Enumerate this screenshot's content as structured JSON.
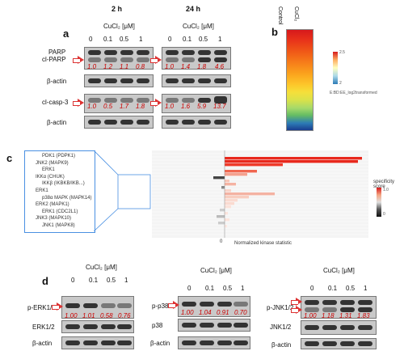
{
  "panel_a": {
    "letter": "a",
    "time_2h": "2 h",
    "time_24h": "24 h",
    "conc_header": "CuCl₂ [μM]",
    "concentrations": [
      "0",
      "0.1",
      "0.5",
      "1"
    ],
    "rows": [
      "PARP",
      "cl-PARP",
      "β-actin",
      "cl-casp-3",
      "β-actin"
    ],
    "parp_2h": [
      "1.0",
      "1.2",
      "1.1",
      "0.8"
    ],
    "parp_24h": [
      "1.0",
      "1.4",
      "1.8",
      "4.6"
    ],
    "casp_2h": [
      "1.0",
      "0.5",
      "1.7",
      "1.8"
    ],
    "casp_24h": [
      "1.0",
      "1.6",
      "5.9",
      "13.7"
    ]
  },
  "panel_b": {
    "letter": "b",
    "col_labels": [
      "Control",
      "CuCl₂"
    ],
    "legend_max": "2.5",
    "legend_min": "2",
    "legend_title": "E:BD:EE_log2transformed"
  },
  "panel_c": {
    "letter": "c",
    "kinases": [
      "PDK1 (PDPK1)",
      "JNK2 (MAPK9)",
      "ERK1",
      "IKKα (CHUK)",
      "IKKβ (IKBKB/IKB...)",
      "ERK1",
      "p38α MAPK (MAPK14)",
      "ERK2 (MAPK1)",
      "ERK1 (CDC2L1)",
      "JNK3 (MAPK10)",
      "JNK1 (MAPK8)"
    ],
    "xlabel": "Normalized kinase statistic",
    "zero_tick": "0",
    "legend_title": "specificity score",
    "legend_high": "1.0",
    "legend_low": "0"
  },
  "panel_d": {
    "letter": "d",
    "conc_header": "CuCl₂ [μM]",
    "concentrations": [
      "0",
      "0.1",
      "0.5",
      "1"
    ],
    "erk": {
      "phospho": "p-ERK1/2",
      "total": "ERK1/2",
      "actin": "β-actin",
      "values": [
        "1.00",
        "1.01",
        "0.58",
        "0.76"
      ]
    },
    "p38": {
      "phospho": "p-p38",
      "total": "p38",
      "actin": "β-actin",
      "values": [
        "1.00",
        "1.04",
        "0.91",
        "0.70"
      ]
    },
    "jnk": {
      "phospho": "p-JNK1/2",
      "total": "JNK1/2",
      "actin": "β-actin",
      "values": [
        "1.00",
        "1.18",
        "1.31",
        "1.83"
      ]
    }
  },
  "colors": {
    "accent": "#cc0000",
    "arrow": "#dd3333",
    "heat_high": "#d7191c",
    "heat_low": "#2c7bb6"
  }
}
